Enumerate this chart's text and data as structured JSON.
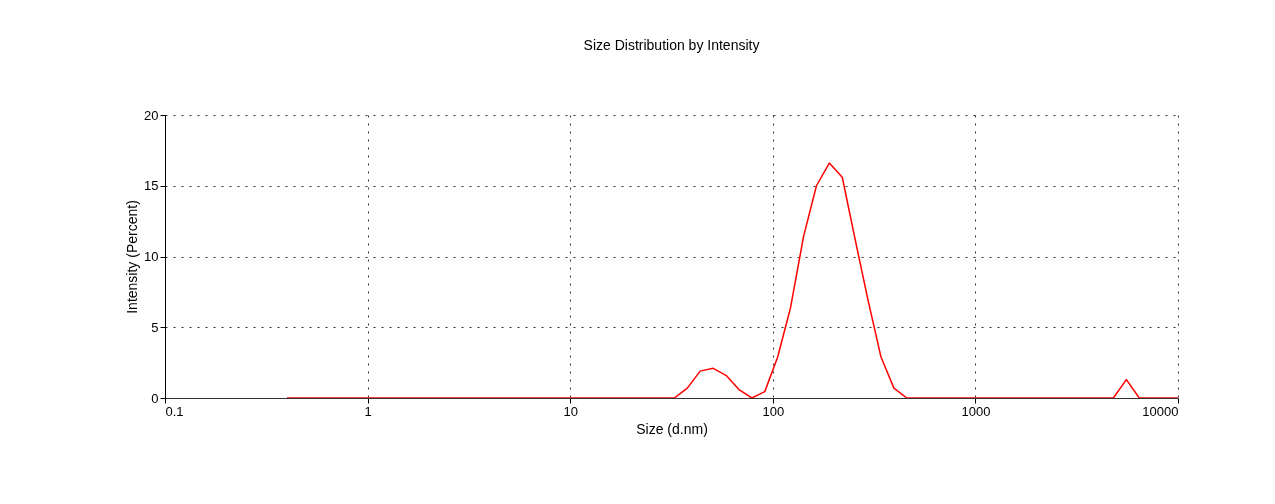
{
  "chart_data": {
    "type": "line",
    "title": "Size Distribution by Intensity",
    "xlabel": "Size (d.nm)",
    "ylabel": "Intensity (Percent)",
    "log": "x",
    "grid": true,
    "marker": "none",
    "line_style": "solid",
    "xlim": [
      0.1,
      10000
    ],
    "xticks": [
      0.1,
      1,
      10,
      100,
      1000,
      10000
    ],
    "ylim": [
      0,
      20
    ],
    "yticks": [
      0,
      5,
      10,
      15,
      20
    ],
    "series": [
      {
        "color": "#ff0000",
        "x": [
          0.4,
          32.67,
          37.84,
          43.82,
          50.75,
          58.77,
          68.06,
          78.82,
          91.28,
          105.7,
          122.4,
          141.8,
          164.2,
          190.1,
          220.2,
          255.0,
          295.3,
          342.0,
          396.1,
          458.7,
          4801,
          5560,
          6439,
          10000
        ],
        "values": [
          0,
          0,
          0.7,
          1.9,
          2.1,
          1.6,
          0.6,
          0,
          0.45,
          2.9,
          6.4,
          11.4,
          15.0,
          16.6,
          15.6,
          11.2,
          6.9,
          2.9,
          0.7,
          0,
          0,
          1.3,
          0,
          0
        ]
      }
    ]
  }
}
